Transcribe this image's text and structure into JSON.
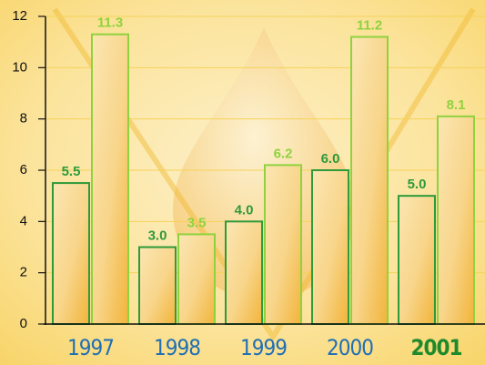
{
  "chart_data": {
    "type": "bar",
    "categories": [
      "1997",
      "1998",
      "1999",
      "2000",
      "2001"
    ],
    "series": [
      {
        "color": "#2e9a3a",
        "values": [
          5.5,
          3.0,
          4.0,
          6.0,
          5.0
        ],
        "value_labels": [
          "5.5",
          "3.0",
          "4.0",
          "6.0",
          "5.0"
        ]
      },
      {
        "color": "#8fd23e",
        "values": [
          11.3,
          3.5,
          6.2,
          11.2,
          8.1
        ],
        "value_labels": [
          "11.3",
          "3.5",
          "6.2",
          "11.2",
          "8.1"
        ]
      }
    ],
    "ylim": [
      0,
      12
    ],
    "yticks": [
      0,
      2,
      4,
      6,
      8,
      10,
      12
    ],
    "grid": true
  }
}
